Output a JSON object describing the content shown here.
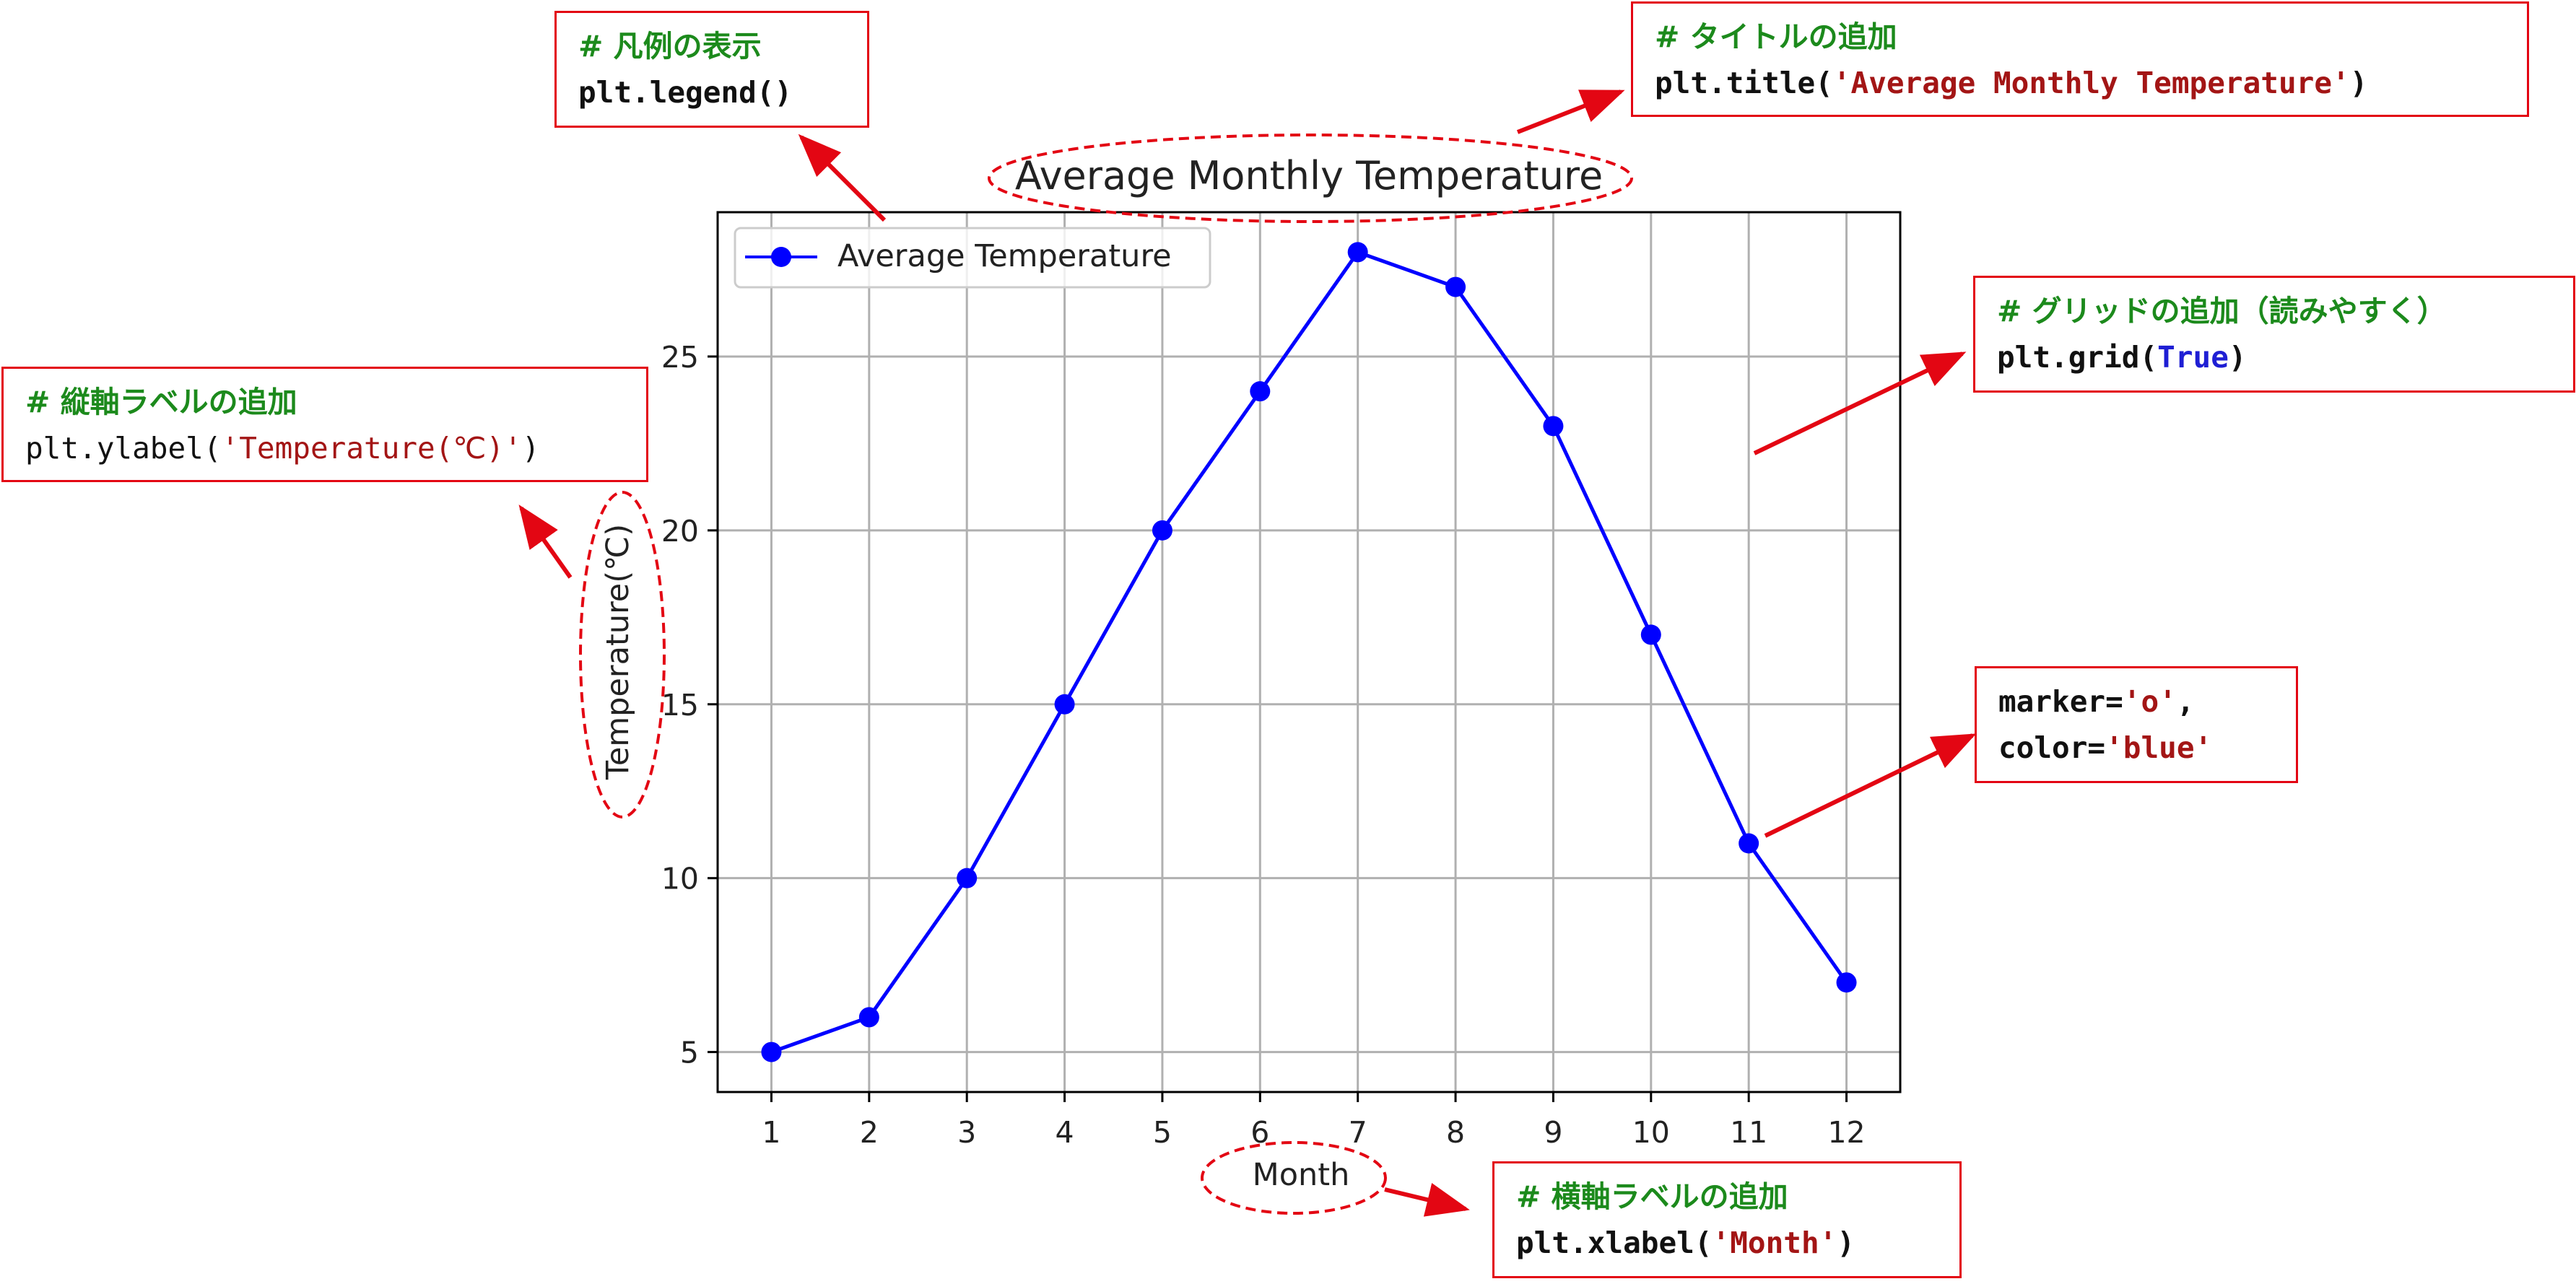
{
  "colors": {
    "line": "#0000ff",
    "annotation": "#e30613",
    "comment": "#1c8a1c",
    "string": "#a31515",
    "keyword": "#1f1fd4",
    "grid": "#b0b0b0"
  },
  "chart_data": {
    "type": "line",
    "title": "Average Monthly Temperature",
    "xlabel": "Month",
    "ylabel": "Temperature(℃)",
    "x": [
      1,
      2,
      3,
      4,
      5,
      6,
      7,
      8,
      9,
      10,
      11,
      12
    ],
    "series": [
      {
        "name": "Average Temperature",
        "values": [
          5,
          6,
          10,
          15,
          20,
          24,
          28,
          27,
          23,
          17,
          11,
          7
        ],
        "color": "#0000ff",
        "marker": "o"
      }
    ],
    "xticks": [
      "1",
      "2",
      "3",
      "4",
      "5",
      "6",
      "7",
      "8",
      "9",
      "10",
      "11",
      "12"
    ],
    "yticks": [
      "5",
      "10",
      "15",
      "20",
      "25"
    ],
    "xlim": [
      0.45,
      12.55
    ],
    "ylim": [
      3.85,
      29.15
    ],
    "grid": true,
    "legend_position": "upper left"
  },
  "annotations": {
    "legend": {
      "comment": "# 凡例の表示",
      "code": "plt.legend()"
    },
    "title": {
      "comment": "# タイトルの追加",
      "code_prefix": "plt.title(",
      "code_string": "'Average Monthly Temperature'",
      "code_suffix": ")"
    },
    "grid": {
      "comment": "# グリッドの追加（読みやすく）",
      "code_prefix": "plt.grid(",
      "code_keyword": "True",
      "code_suffix": ")"
    },
    "ylabel": {
      "comment": "# 縦軸ラベルの追加",
      "code_prefix": "plt.ylabel(",
      "code_string": "'Temperature(℃)'",
      "code_suffix": ")"
    },
    "marker": {
      "line1_prefix": "marker=",
      "line1_string": "'o'",
      "line1_suffix": ",",
      "line2_prefix": "color=",
      "line2_string": "'blue'"
    },
    "xlabel": {
      "comment": "# 横軸ラベルの追加",
      "code_prefix": "plt.xlabel(",
      "code_string": "'Month'",
      "code_suffix": ")"
    }
  }
}
